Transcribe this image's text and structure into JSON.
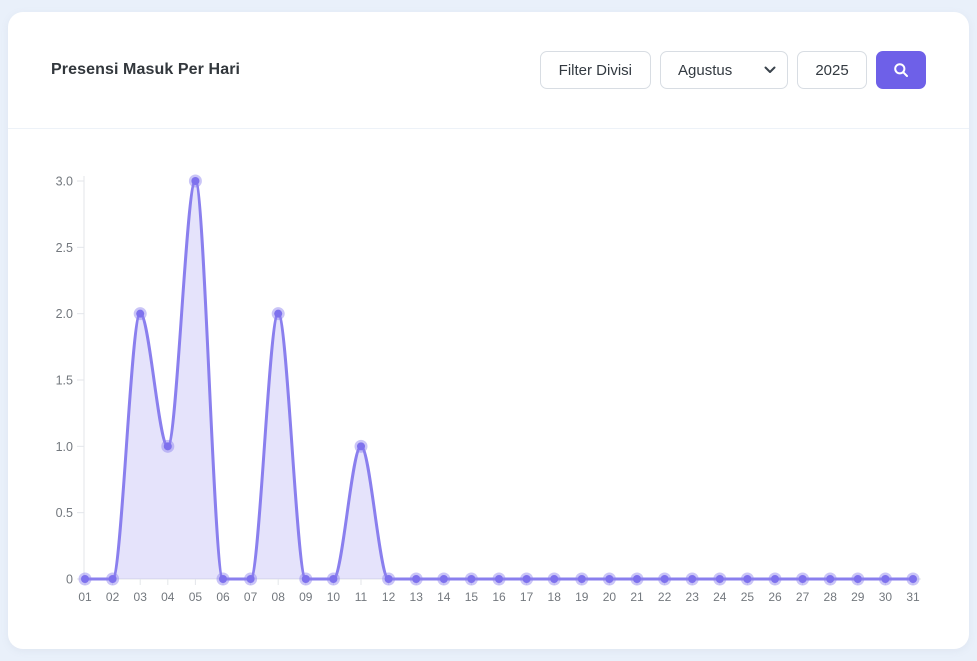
{
  "page": {
    "background": "#e9f0fa"
  },
  "card": {
    "header": {
      "title": "Presensi Masuk Per Hari",
      "filter_divisi_label": "Filter Divisi",
      "month_value": "Agustus",
      "year_value": "2025",
      "search_button_color": "#6e60e8"
    }
  },
  "chart_data": {
    "type": "area",
    "title": "Presensi Masuk Per Hari",
    "x": [
      "01",
      "02",
      "03",
      "04",
      "05",
      "06",
      "07",
      "08",
      "09",
      "10",
      "11",
      "12",
      "13",
      "14",
      "15",
      "16",
      "17",
      "18",
      "19",
      "20",
      "21",
      "22",
      "23",
      "24",
      "25",
      "26",
      "27",
      "28",
      "29",
      "30",
      "31"
    ],
    "values": [
      0,
      0,
      2,
      1,
      3,
      0,
      0,
      2,
      0,
      0,
      1,
      0,
      0,
      0,
      0,
      0,
      0,
      0,
      0,
      0,
      0,
      0,
      0,
      0,
      0,
      0,
      0,
      0,
      0,
      0,
      0
    ],
    "xlabel": "",
    "ylabel": "",
    "ylim": [
      0,
      3
    ],
    "yticks": [
      0,
      0.5,
      1.0,
      1.5,
      2.0,
      2.5,
      3.0
    ],
    "ytick_labels": [
      "0",
      "0.5",
      "1.0",
      "1.5",
      "2.0",
      "2.5",
      "3.0"
    ],
    "grid": false,
    "legend": "none",
    "line_color": "#8a7fee",
    "marker_color": "#7e71ed",
    "fill_color": "rgba(138,127,238,0.22)",
    "axis_color": "#e3e6ea",
    "label_color": "#73787e"
  }
}
